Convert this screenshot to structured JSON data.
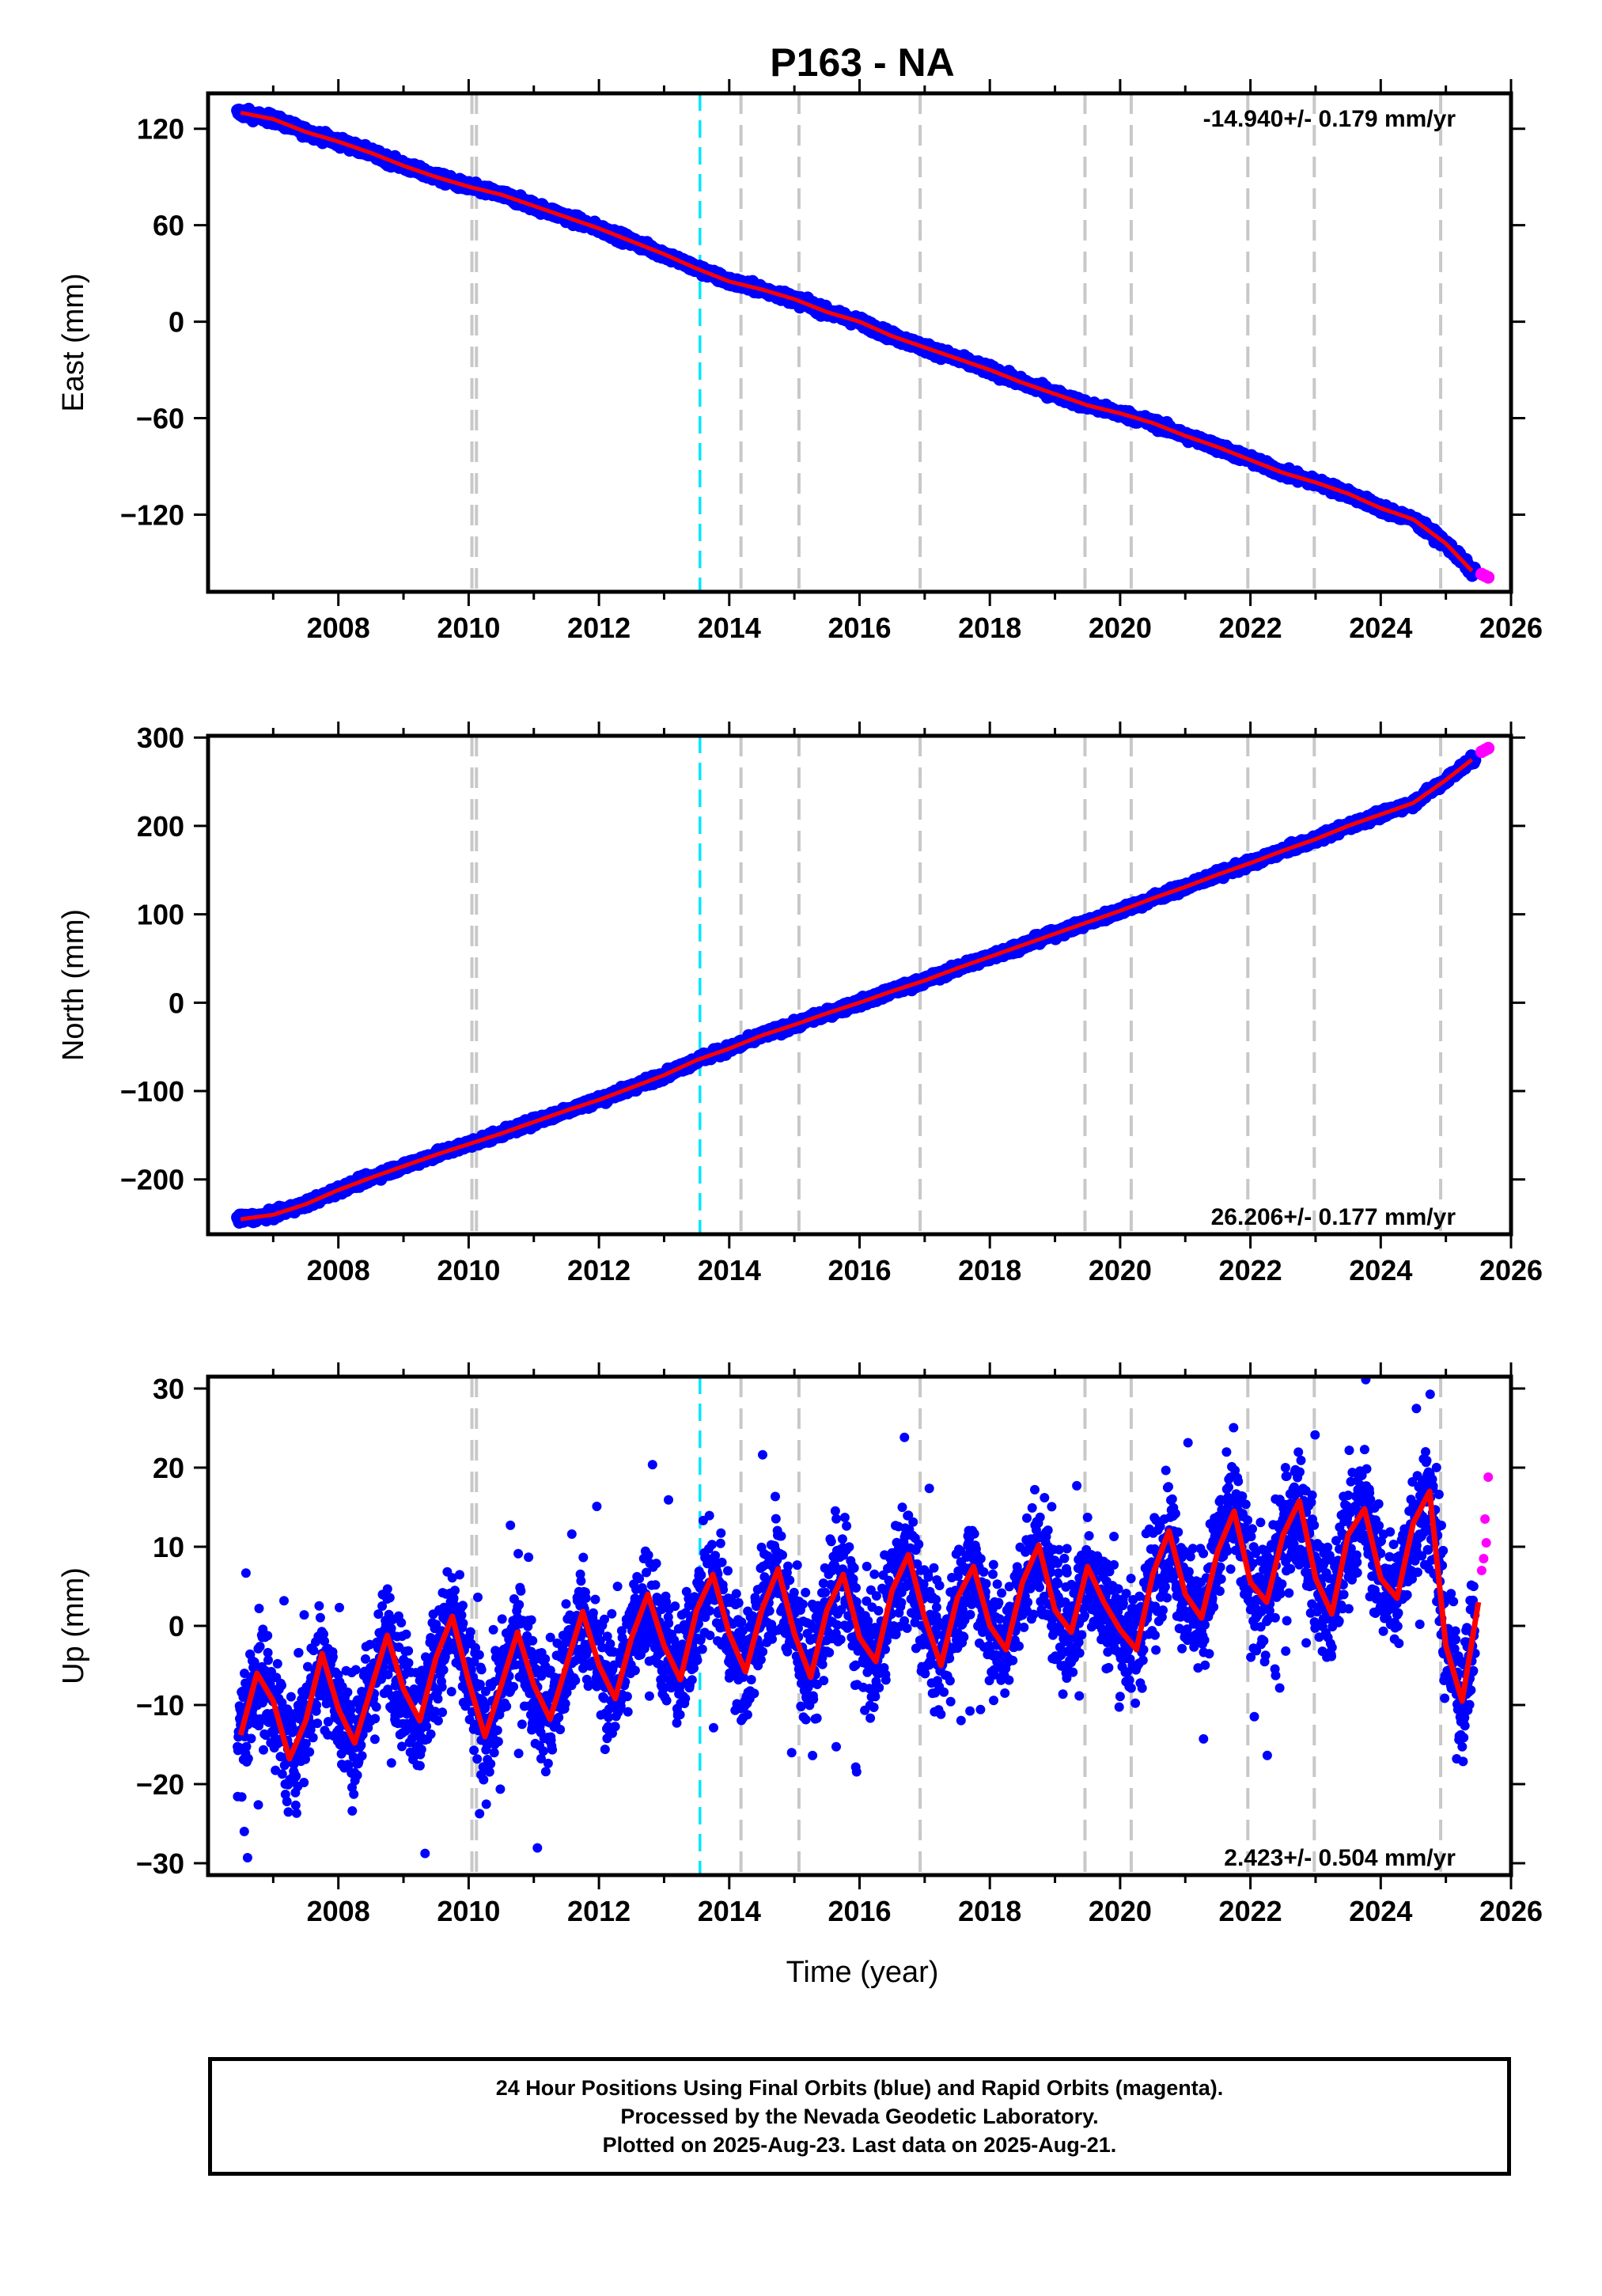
{
  "title": "P163 - NA",
  "xlabel": "Time (year)",
  "colors": {
    "final_points": "#0000ff",
    "rapid_points": "#ff00ff",
    "model_fit": "#ff0000",
    "event_lines": "#c8c8c8",
    "highlight_line": "#00e5ff"
  },
  "event_years": [
    2010.05,
    2010.12,
    2014.18,
    2015.07,
    2016.93,
    2019.46,
    2020.17,
    2021.96,
    2022.98,
    2024.92
  ],
  "highlight_year": 2013.55,
  "footer": {
    "line1": "24 Hour Positions Using Final Orbits (blue) and Rapid Orbits (magenta).",
    "line2": "Processed by the Nevada Geodetic Laboratory.",
    "line3": "Plotted on 2025-Aug-23. Last data on 2025-Aug-21."
  },
  "chart_data": [
    {
      "type": "scatter",
      "ylabel": "East (mm)",
      "velocity_label": "-14.940+/- 0.179 mm/yr",
      "xlim": [
        2006.0,
        2026.0
      ],
      "ylim": [
        -168,
        142
      ],
      "xticks": [
        2008,
        2010,
        2012,
        2014,
        2016,
        2018,
        2020,
        2022,
        2024,
        2026
      ],
      "yticks": [
        -120,
        -60,
        0,
        60,
        120
      ],
      "series": [
        {
          "color": "final",
          "x": [
            2006.5,
            2007.0,
            2007.5,
            2008.0,
            2008.5,
            2009.0,
            2009.5,
            2010.0,
            2010.5,
            2011.0,
            2011.5,
            2012.0,
            2012.5,
            2013.0,
            2013.5,
            2014.0,
            2014.5,
            2015.0,
            2015.5,
            2016.0,
            2016.5,
            2017.0,
            2017.5,
            2018.0,
            2018.5,
            2019.0,
            2019.5,
            2020.0,
            2020.5,
            2021.0,
            2021.5,
            2022.0,
            2022.5,
            2023.0,
            2023.5,
            2024.0,
            2024.5,
            2025.0,
            2025.4
          ],
          "y": [
            130,
            126,
            118,
            112,
            105,
            97,
            90,
            84,
            79,
            72,
            65,
            58,
            50,
            42,
            33,
            25,
            20,
            14,
            6,
            0,
            -9,
            -16,
            -23,
            -30,
            -38,
            -45,
            -52,
            -57,
            -63,
            -71,
            -78,
            -86,
            -94,
            -100,
            -107,
            -116,
            -123,
            -138,
            -155
          ]
        },
        {
          "color": "rapid",
          "x": [
            2025.55,
            2025.6,
            2025.65
          ],
          "y": [
            -157,
            -158,
            -159
          ]
        }
      ]
    },
    {
      "type": "scatter",
      "ylabel": "North (mm)",
      "velocity_label": "26.206+/- 0.177 mm/yr",
      "xlim": [
        2006.0,
        2026.0
      ],
      "ylim": [
        -262,
        302
      ],
      "xticks": [
        2008,
        2010,
        2012,
        2014,
        2016,
        2018,
        2020,
        2022,
        2024,
        2026
      ],
      "yticks": [
        -200,
        -100,
        0,
        100,
        200,
        300
      ],
      "series": [
        {
          "color": "final",
          "x": [
            2006.5,
            2007.0,
            2007.5,
            2008.0,
            2008.5,
            2009.0,
            2009.5,
            2010.0,
            2010.5,
            2011.0,
            2011.5,
            2012.0,
            2012.5,
            2013.0,
            2013.5,
            2014.0,
            2014.5,
            2015.0,
            2015.5,
            2016.0,
            2016.5,
            2017.0,
            2017.5,
            2018.0,
            2018.5,
            2019.0,
            2019.5,
            2020.0,
            2020.5,
            2021.0,
            2021.5,
            2022.0,
            2022.5,
            2023.0,
            2023.5,
            2024.0,
            2024.5,
            2025.0,
            2025.4
          ],
          "y": [
            -245,
            -240,
            -228,
            -212,
            -198,
            -185,
            -172,
            -160,
            -148,
            -135,
            -122,
            -110,
            -96,
            -82,
            -65,
            -52,
            -37,
            -25,
            -12,
            0,
            13,
            25,
            39,
            52,
            65,
            78,
            91,
            104,
            118,
            131,
            145,
            158,
            172,
            185,
            200,
            213,
            226,
            252,
            275
          ]
        },
        {
          "color": "rapid",
          "x": [
            2025.55,
            2025.6,
            2025.65
          ],
          "y": [
            284,
            286,
            288
          ]
        }
      ]
    },
    {
      "type": "scatter",
      "ylabel": "Up (mm)",
      "velocity_label": "2.423+/- 0.504 mm/yr",
      "xlim": [
        2006.0,
        2026.0
      ],
      "ylim": [
        -31.5,
        31.5
      ],
      "xticks": [
        2008,
        2010,
        2012,
        2014,
        2016,
        2018,
        2020,
        2022,
        2024,
        2026
      ],
      "yticks": [
        -30,
        -20,
        -10,
        0,
        10,
        20,
        30
      ],
      "series": [
        {
          "color": "model",
          "x": [
            2006.5,
            2006.75,
            2007.0,
            2007.25,
            2007.5,
            2007.75,
            2008.0,
            2008.25,
            2008.5,
            2008.75,
            2009.0,
            2009.25,
            2009.5,
            2009.75,
            2010.0,
            2010.25,
            2010.5,
            2010.75,
            2011.0,
            2011.25,
            2011.5,
            2011.75,
            2012.0,
            2012.25,
            2012.5,
            2012.75,
            2013.0,
            2013.25,
            2013.5,
            2013.75,
            2014.0,
            2014.25,
            2014.5,
            2014.75,
            2015.0,
            2015.25,
            2015.5,
            2015.75,
            2016.0,
            2016.25,
            2016.5,
            2016.75,
            2017.0,
            2017.25,
            2017.5,
            2017.75,
            2018.0,
            2018.25,
            2018.5,
            2018.75,
            2019.0,
            2019.25,
            2019.5,
            2019.75,
            2020.0,
            2020.25,
            2020.5,
            2020.75,
            2021.0,
            2021.25,
            2021.5,
            2021.75,
            2022.0,
            2022.25,
            2022.5,
            2022.75,
            2023.0,
            2023.25,
            2023.5,
            2023.75,
            2024.0,
            2024.25,
            2024.5,
            2024.75,
            2025.0,
            2025.25,
            2025.5
          ],
          "y": [
            -13.8,
            -6.0,
            -9.5,
            -16.8,
            -12.0,
            -3.5,
            -10.5,
            -14.8,
            -8.0,
            -1.2,
            -8.0,
            -12.0,
            -4.0,
            1.2,
            -7.0,
            -14.0,
            -7.5,
            -0.8,
            -7.5,
            -11.8,
            -5.0,
            1.8,
            -5.0,
            -9.2,
            -1.5,
            4.0,
            -2.5,
            -6.8,
            2.0,
            6.5,
            -1.0,
            -5.8,
            2.0,
            7.2,
            -1.0,
            -6.5,
            2.0,
            6.5,
            -1.5,
            -4.5,
            4.5,
            9.0,
            1.0,
            -5.0,
            3.5,
            7.5,
            0.0,
            -3.0,
            5.5,
            10.2,
            2.0,
            -0.8,
            7.5,
            3.0,
            -0.5,
            -3.0,
            6.5,
            12.0,
            4.0,
            1.0,
            9.5,
            14.5,
            5.5,
            3.0,
            11.5,
            15.8,
            6.0,
            1.5,
            11.5,
            14.8,
            6.0,
            3.5,
            13.0,
            17.0,
            -2.5,
            -9.5,
            3.0
          ]
        },
        {
          "color": "rapid",
          "x": [
            2025.55,
            2025.58,
            2025.6,
            2025.62,
            2025.65
          ],
          "y": [
            7.0,
            8.5,
            13.5,
            10.5,
            18.8
          ]
        }
      ]
    }
  ]
}
